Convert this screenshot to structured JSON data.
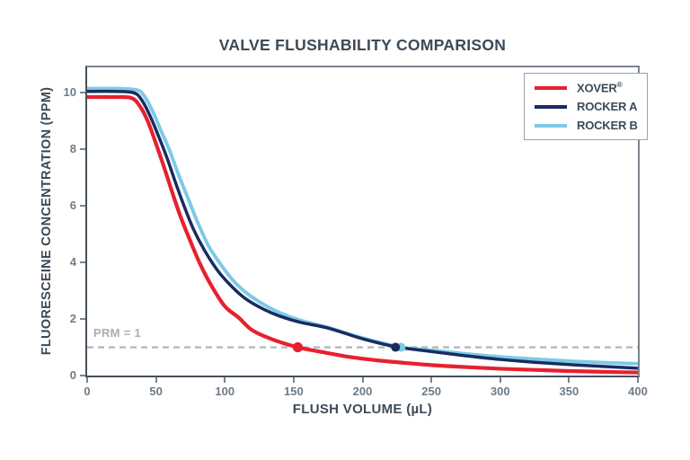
{
  "title": "VALVE FLUSHABILITY COMPARISON",
  "colors": {
    "xover_red": "#e8202f",
    "rocker_a_navy": "#182c61",
    "rocker_b_lightblue": "#7ccae7",
    "reference_gray": "#b4b8bc",
    "title_slate": "#3d4a57",
    "tick_gray": "#6e7b87"
  },
  "legend": {
    "items": [
      {
        "label": "XOVER",
        "sup": "®",
        "color": "#e8202f"
      },
      {
        "label": "ROCKER A",
        "sup": "",
        "color": "#182c61"
      },
      {
        "label": "ROCKER B",
        "sup": "",
        "color": "#7ccae7"
      }
    ]
  },
  "chart_data": {
    "type": "line",
    "title": "VALVE FLUSHABILITY COMPARISON",
    "xlabel": "FLUSH VOLUME (µL)",
    "ylabel": "FLUORESCEINE CONCENTRATION (PPM)",
    "xlim": [
      0,
      400
    ],
    "ylim": [
      0,
      10.9
    ],
    "x_ticks": [
      0,
      50,
      100,
      150,
      200,
      250,
      300,
      350,
      400
    ],
    "y_ticks": [
      0,
      2,
      4,
      6,
      8,
      10
    ],
    "grid": false,
    "legend_position": "top-right-inside",
    "reference_line": {
      "label": "PRM = 1",
      "y": 1,
      "color": "#b4b8bc",
      "style": "dashed"
    },
    "series": [
      {
        "name": "XOVER®",
        "color": "#e8202f",
        "width": 4.2,
        "marker": {
          "x": 153,
          "y": 1
        },
        "points": [
          [
            0,
            9.85
          ],
          [
            20,
            9.85
          ],
          [
            32,
            9.82
          ],
          [
            38,
            9.55
          ],
          [
            44,
            9.0
          ],
          [
            50,
            8.2
          ],
          [
            56,
            7.35
          ],
          [
            62,
            6.45
          ],
          [
            68,
            5.6
          ],
          [
            75,
            4.75
          ],
          [
            82,
            3.95
          ],
          [
            90,
            3.2
          ],
          [
            100,
            2.45
          ],
          [
            110,
            2.05
          ],
          [
            120,
            1.6
          ],
          [
            135,
            1.27
          ],
          [
            153,
            1.0
          ],
          [
            172,
            0.82
          ],
          [
            190,
            0.66
          ],
          [
            210,
            0.54
          ],
          [
            230,
            0.45
          ],
          [
            250,
            0.37
          ],
          [
            275,
            0.3
          ],
          [
            300,
            0.24
          ],
          [
            325,
            0.2
          ],
          [
            350,
            0.16
          ],
          [
            375,
            0.13
          ],
          [
            400,
            0.11
          ]
        ]
      },
      {
        "name": "ROCKER A",
        "color": "#182c61",
        "width": 3.5,
        "marker": {
          "x": 224,
          "y": 1
        },
        "points": [
          [
            0,
            10.05
          ],
          [
            20,
            10.05
          ],
          [
            34,
            10.0
          ],
          [
            40,
            9.72
          ],
          [
            46,
            9.15
          ],
          [
            52,
            8.45
          ],
          [
            58,
            7.7
          ],
          [
            64,
            6.85
          ],
          [
            70,
            6.05
          ],
          [
            77,
            5.2
          ],
          [
            85,
            4.45
          ],
          [
            95,
            3.7
          ],
          [
            105,
            3.15
          ],
          [
            115,
            2.72
          ],
          [
            128,
            2.35
          ],
          [
            140,
            2.1
          ],
          [
            155,
            1.88
          ],
          [
            175,
            1.68
          ],
          [
            200,
            1.3
          ],
          [
            224,
            1.02
          ],
          [
            250,
            0.85
          ],
          [
            275,
            0.7
          ],
          [
            300,
            0.57
          ],
          [
            325,
            0.47
          ],
          [
            350,
            0.39
          ],
          [
            375,
            0.32
          ],
          [
            400,
            0.26
          ]
        ]
      },
      {
        "name": "ROCKER B",
        "color": "#7ccae7",
        "width": 3.9,
        "marker": {
          "x": 228,
          "y": 1
        },
        "points": [
          [
            0,
            10.15
          ],
          [
            20,
            10.15
          ],
          [
            36,
            10.1
          ],
          [
            42,
            9.85
          ],
          [
            48,
            9.3
          ],
          [
            54,
            8.62
          ],
          [
            60,
            7.95
          ],
          [
            66,
            7.15
          ],
          [
            73,
            6.3
          ],
          [
            80,
            5.45
          ],
          [
            88,
            4.6
          ],
          [
            96,
            4.0
          ],
          [
            105,
            3.42
          ],
          [
            115,
            2.95
          ],
          [
            128,
            2.52
          ],
          [
            140,
            2.22
          ],
          [
            155,
            1.95
          ],
          [
            175,
            1.7
          ],
          [
            200,
            1.33
          ],
          [
            228,
            1.0
          ],
          [
            250,
            0.9
          ],
          [
            275,
            0.77
          ],
          [
            300,
            0.66
          ],
          [
            325,
            0.58
          ],
          [
            350,
            0.51
          ],
          [
            375,
            0.46
          ],
          [
            400,
            0.42
          ]
        ]
      }
    ]
  }
}
